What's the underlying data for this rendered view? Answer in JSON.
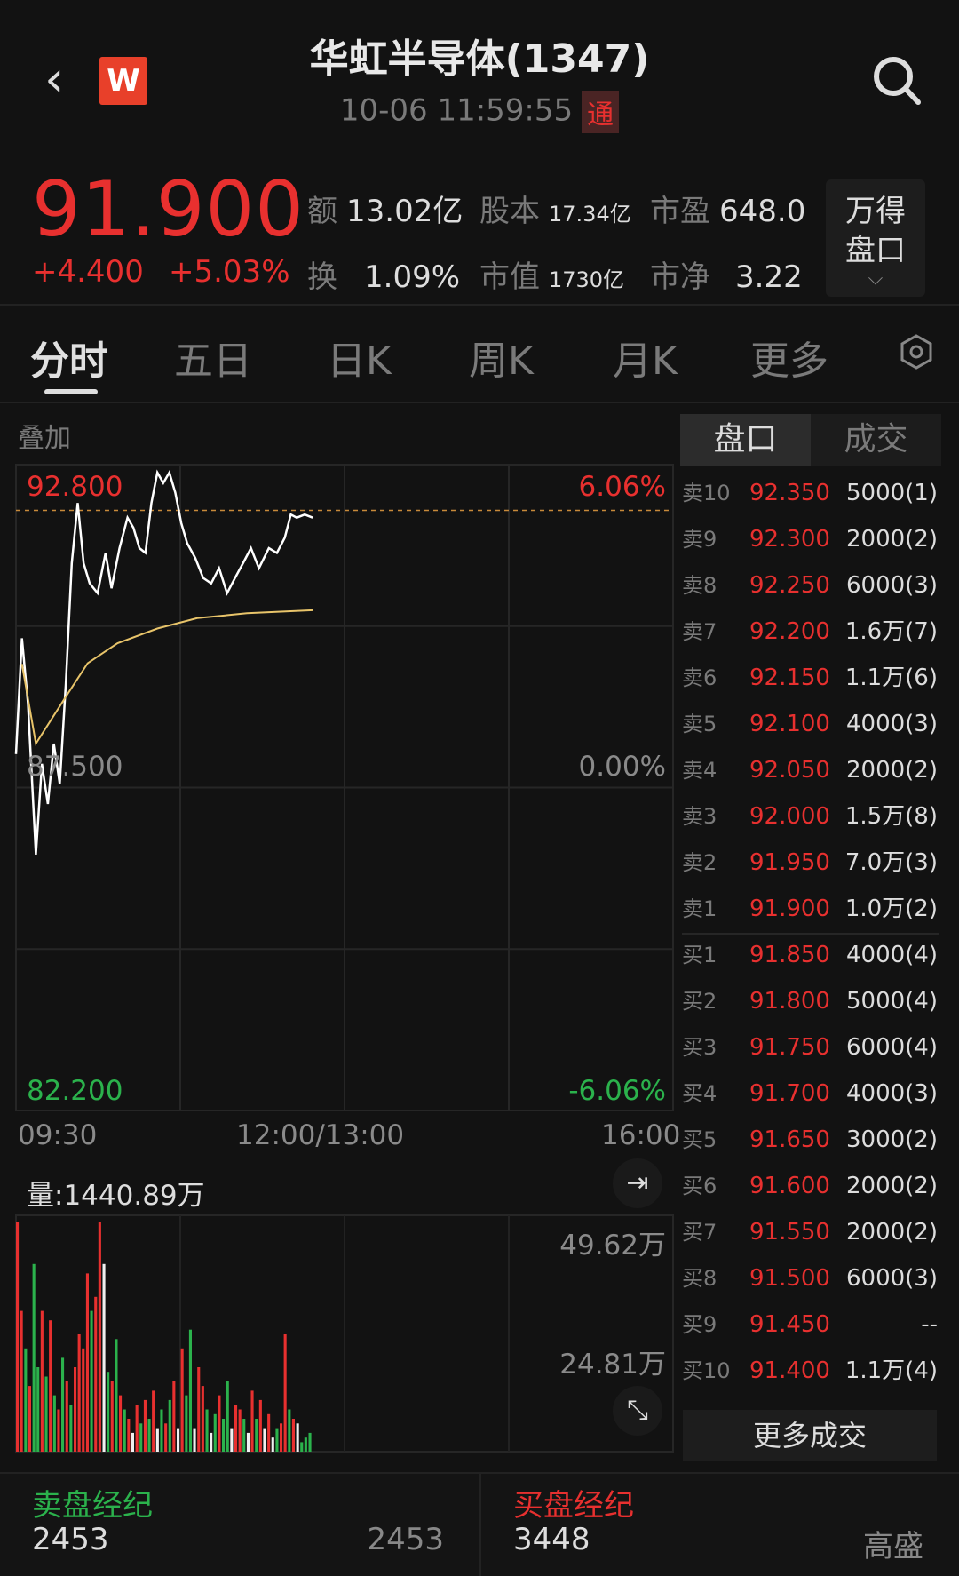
{
  "header": {
    "title": "华虹半导体(1347)",
    "datetime": "10-06 11:59:55",
    "tong_badge": "通",
    "logo": "W",
    "icons": [
      "back-icon",
      "search-icon"
    ]
  },
  "quote": {
    "price": "91.900",
    "change": "+4.400",
    "change_pct": "+5.03%",
    "stats": [
      {
        "k": "额",
        "v": "13.02亿"
      },
      {
        "k": "股本",
        "v": "17.34亿"
      },
      {
        "k": "市盈",
        "v": "648.0"
      },
      {
        "k": "换",
        "v": "1.09%"
      },
      {
        "k": "市值",
        "v": "1730亿"
      },
      {
        "k": "市净",
        "v": "3.22"
      }
    ],
    "wind_button": [
      "万得",
      "盘口"
    ]
  },
  "tabs": [
    {
      "label": "分时",
      "active": true
    },
    {
      "label": "五日"
    },
    {
      "label": "日K"
    },
    {
      "label": "周K"
    },
    {
      "label": "月K"
    },
    {
      "label": "更多"
    }
  ],
  "overlay_label": "叠加",
  "orderbook_tabs": [
    {
      "label": "盘口",
      "active": true
    },
    {
      "label": "成交"
    }
  ],
  "colors": {
    "up": "#e8302f",
    "down": "#2bb24c",
    "avg_line": "#e8c46a",
    "price_line": "#ffffff"
  },
  "chart_data": [
    {
      "type": "line",
      "ylim": [
        82.2,
        92.8
      ],
      "y_ticks_left": [
        "92.800",
        "87.500",
        "82.200"
      ],
      "y_ticks_right": [
        "6.06%",
        "0.00%",
        "-6.06%"
      ],
      "x_ticks": [
        "09:30",
        "12:00/13:00",
        "16:00"
      ],
      "prev_close": 87.5,
      "high_ref": 92.8,
      "series": [
        {
          "key": "price",
          "x": [
            "09:30",
            "09:33",
            "09:36",
            "09:40",
            "09:43",
            "09:46",
            "09:49",
            "09:52",
            "09:55",
            "09:58",
            "10:01",
            "10:04",
            "10:07",
            "10:11",
            "10:15",
            "10:18",
            "10:22",
            "10:26",
            "10:29",
            "10:32",
            "10:35",
            "10:38",
            "10:41",
            "10:44",
            "10:47",
            "10:50",
            "10:53",
            "10:56",
            "11:00",
            "11:04",
            "11:08",
            "11:12",
            "11:16",
            "11:20",
            "11:24",
            "11:28",
            "11:32",
            "11:37",
            "11:41",
            "11:45",
            "11:48",
            "11:51",
            "11:55",
            "11:59"
          ],
          "values": [
            88.05,
            89.95,
            88.88,
            86.4,
            87.89,
            87.23,
            88.22,
            87.56,
            89.2,
            91.18,
            92.17,
            91.18,
            90.85,
            90.69,
            91.35,
            90.77,
            91.43,
            91.93,
            91.76,
            91.43,
            91.35,
            92.17,
            92.67,
            92.5,
            92.67,
            92.34,
            91.84,
            91.51,
            91.27,
            90.94,
            90.85,
            91.1,
            90.69,
            90.94,
            91.18,
            91.43,
            91.1,
            91.43,
            91.35,
            91.6,
            91.98,
            91.93,
            91.98,
            91.93
          ]
        },
        {
          "key": "average",
          "x": [
            "09:33",
            "09:40",
            "09:56",
            "10:06",
            "10:21",
            "10:41",
            "11:01",
            "11:26",
            "11:59"
          ],
          "values": [
            89.53,
            88.22,
            89.04,
            89.54,
            89.87,
            90.11,
            90.28,
            90.36,
            90.41
          ]
        }
      ]
    },
    {
      "type": "bar",
      "title": "量:1440.89万",
      "y_ticks": [
        "49.62万",
        "24.81万"
      ],
      "ymax": 49.62,
      "values": [
        49,
        30,
        22,
        14,
        40,
        18,
        30,
        16,
        28,
        12,
        9,
        20,
        15,
        10,
        18,
        25,
        22,
        38,
        30,
        33,
        49,
        40,
        17,
        15,
        24,
        12,
        9,
        7,
        4,
        10,
        6,
        11,
        7,
        13,
        5,
        9,
        6,
        11,
        15,
        5,
        22,
        12,
        26,
        5,
        18,
        14,
        9,
        4,
        8,
        12,
        7,
        15,
        5,
        10,
        9,
        7,
        4,
        13,
        7,
        11,
        5,
        8,
        3,
        5,
        6,
        25,
        9,
        7,
        6,
        2,
        3,
        4
      ],
      "colors": [
        "r",
        "r",
        "g",
        "r",
        "g",
        "g",
        "r",
        "g",
        "r",
        "g",
        "r",
        "g",
        "r",
        "g",
        "r",
        "r",
        "r",
        "r",
        "g",
        "r",
        "r",
        "w",
        "g",
        "r",
        "g",
        "r",
        "g",
        "r",
        "w",
        "r",
        "g",
        "r",
        "g",
        "r",
        "w",
        "g",
        "r",
        "g",
        "r",
        "w",
        "r",
        "g",
        "g",
        "w",
        "r",
        "r",
        "g",
        "w",
        "g",
        "r",
        "g",
        "g",
        "w",
        "r",
        "r",
        "g",
        "w",
        "r",
        "g",
        "r",
        "w",
        "r",
        "w",
        "g",
        "r",
        "r",
        "g",
        "r",
        "w",
        "g",
        "g",
        "g"
      ]
    }
  ],
  "orderbook": {
    "asks": [
      {
        "l": "卖10",
        "p": "92.350",
        "v": "5000(1)"
      },
      {
        "l": "卖9",
        "p": "92.300",
        "v": "2000(2)"
      },
      {
        "l": "卖8",
        "p": "92.250",
        "v": "6000(3)"
      },
      {
        "l": "卖7",
        "p": "92.200",
        "v": "1.6万(7)"
      },
      {
        "l": "卖6",
        "p": "92.150",
        "v": "1.1万(6)"
      },
      {
        "l": "卖5",
        "p": "92.100",
        "v": "4000(3)"
      },
      {
        "l": "卖4",
        "p": "92.050",
        "v": "2000(2)"
      },
      {
        "l": "卖3",
        "p": "92.000",
        "v": "1.5万(8)"
      },
      {
        "l": "卖2",
        "p": "91.950",
        "v": "7.0万(3)"
      },
      {
        "l": "卖1",
        "p": "91.900",
        "v": "1.0万(2)"
      }
    ],
    "bids": [
      {
        "l": "买1",
        "p": "91.850",
        "v": "4000(4)"
      },
      {
        "l": "买2",
        "p": "91.800",
        "v": "5000(4)"
      },
      {
        "l": "买3",
        "p": "91.750",
        "v": "6000(4)"
      },
      {
        "l": "买4",
        "p": "91.700",
        "v": "4000(3)"
      },
      {
        "l": "买5",
        "p": "91.650",
        "v": "3000(2)"
      },
      {
        "l": "买6",
        "p": "91.600",
        "v": "2000(2)"
      },
      {
        "l": "买7",
        "p": "91.550",
        "v": "2000(2)"
      },
      {
        "l": "买8",
        "p": "91.500",
        "v": "6000(3)"
      },
      {
        "l": "买9",
        "p": "91.450",
        "v": "--"
      },
      {
        "l": "买10",
        "p": "91.400",
        "v": "1.1万(4)"
      }
    ],
    "more_trades": "更多成交"
  },
  "brokers": {
    "sell": {
      "title": "卖盘经纪",
      "code": "2453",
      "name": "2453"
    },
    "buy": {
      "title": "买盘经纪",
      "code": "3448",
      "name": "高盛"
    }
  }
}
